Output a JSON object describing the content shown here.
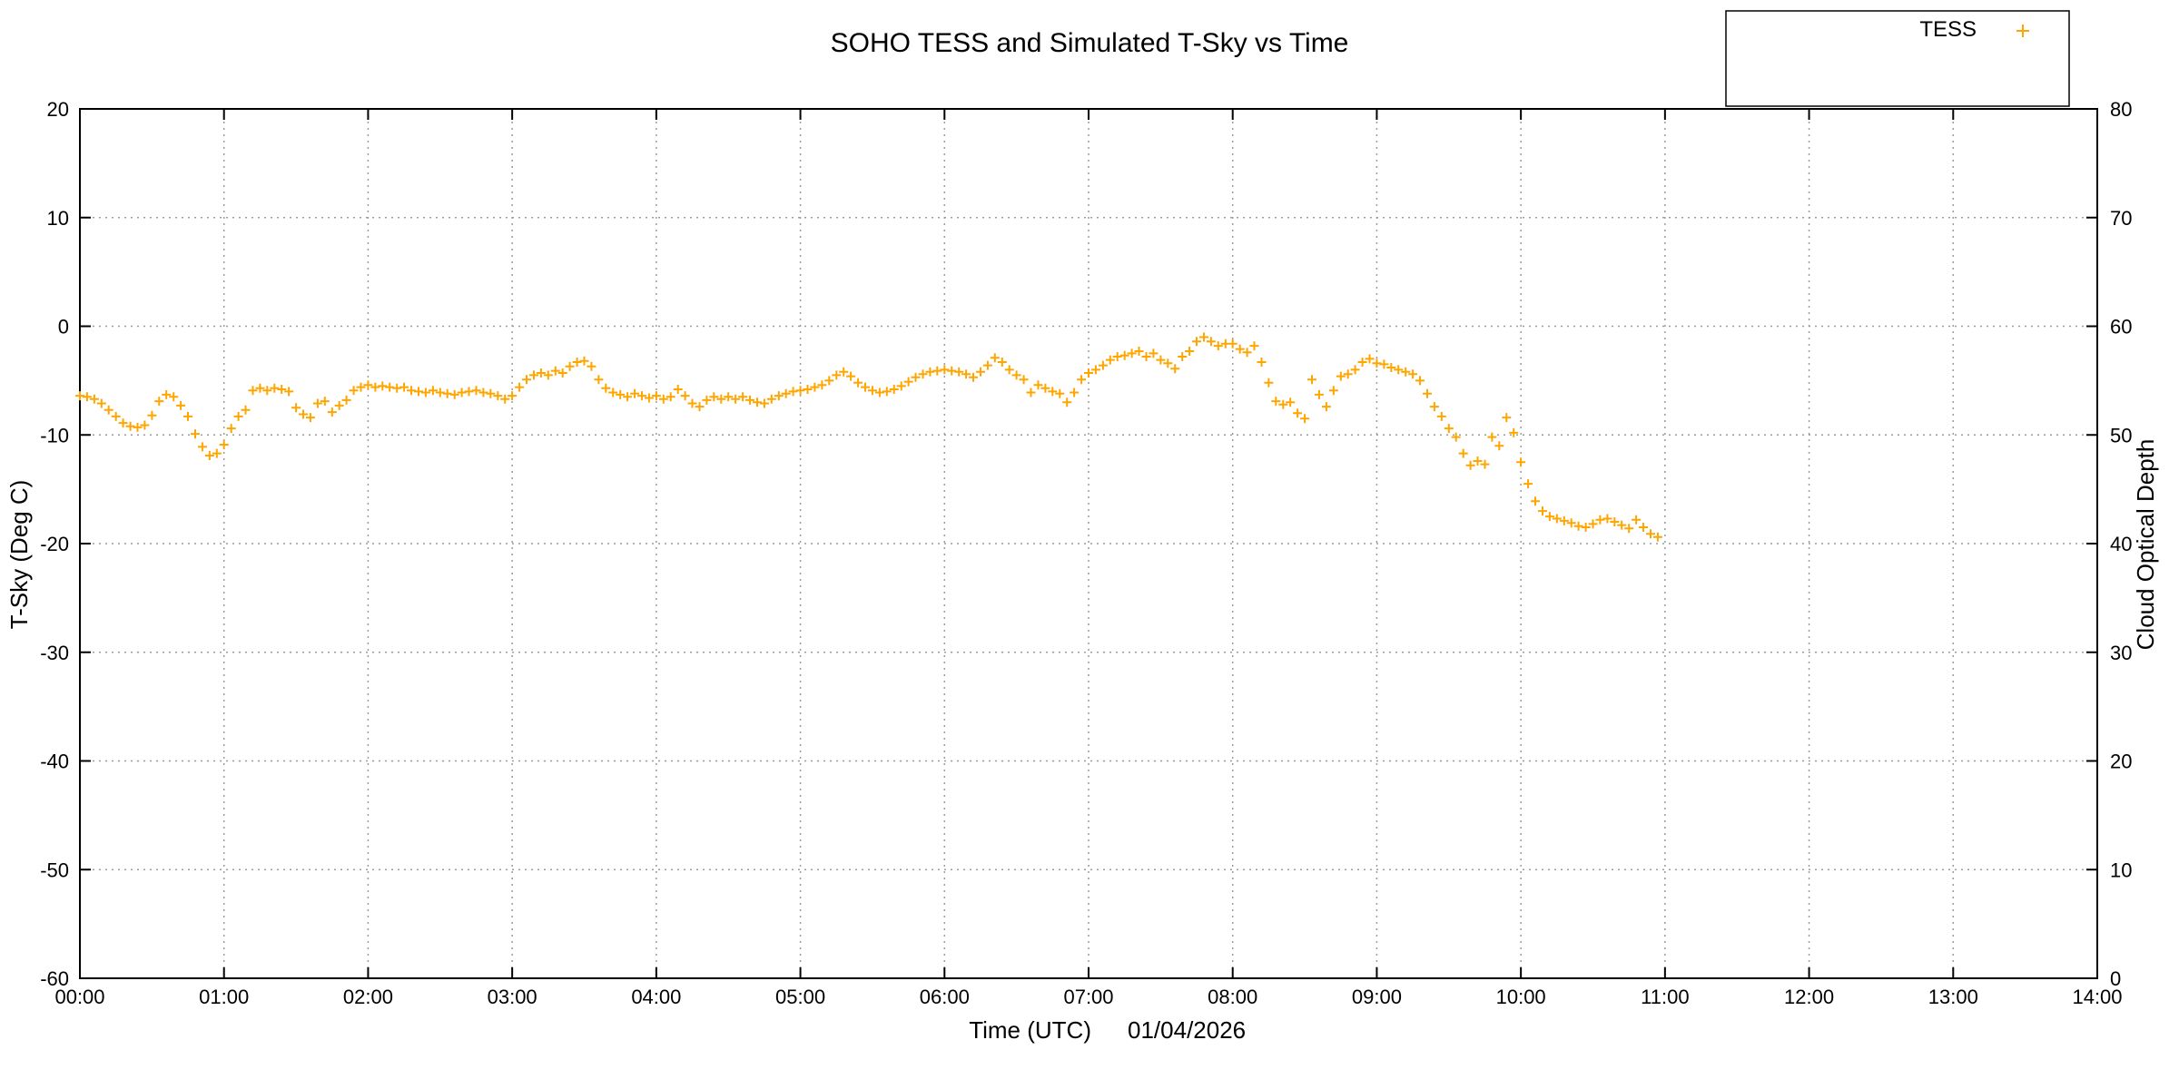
{
  "colors": {
    "marker_orange": "#ffa500",
    "axis_label_green": "#009e73",
    "right_axis_label_blue": "#56b4e9",
    "grid_gray": "#9c9c9c",
    "border_black": "#000000"
  },
  "chart_data": {
    "type": "scatter",
    "title": "SOHO TESS and Simulated T-Sky vs Time",
    "xlabel": "Time (UTC)",
    "xlabel_date": "01/04/2026",
    "ylabel_left": "T-Sky (Deg C)",
    "ylabel_right": "Cloud Optical Depth",
    "xlim_hours": [
      0,
      14
    ],
    "ylim_left": [
      -60,
      20
    ],
    "ylim_right": [
      0,
      80
    ],
    "grid": "dotted-at-every-major-tick",
    "x_tick_labels": [
      "00:00",
      "01:00",
      "02:00",
      "03:00",
      "04:00",
      "05:00",
      "06:00",
      "07:00",
      "08:00",
      "09:00",
      "10:00",
      "11:00",
      "12:00",
      "13:00",
      "14:00"
    ],
    "y_left_tick_labels": [
      "20",
      "10",
      "0",
      "-10",
      "-20",
      "-30",
      "-40",
      "-50",
      "-60"
    ],
    "y_right_tick_labels": [
      "80",
      "70",
      "60",
      "50",
      "40",
      "30",
      "20",
      "10",
      "0"
    ],
    "legend": {
      "position": "top-right-above-plot",
      "entries": [
        {
          "label": "TESS",
          "marker": "plus",
          "color": "#ffa500"
        }
      ]
    },
    "series": [
      {
        "name": "TESS",
        "axis": "left",
        "marker": "plus",
        "color": "#ffa500",
        "points_time_hours_vs_tsky_degC": [
          [
            0,
            -6.4
          ],
          [
            0.05,
            -6.5
          ],
          [
            0.1,
            -6.7
          ],
          [
            0.15,
            -7.1
          ],
          [
            0.2,
            -7.7
          ],
          [
            0.25,
            -8.3
          ],
          [
            0.3,
            -8.9
          ],
          [
            0.35,
            -9.2
          ],
          [
            0.4,
            -9.3
          ],
          [
            0.45,
            -9.1
          ],
          [
            0.5,
            -8.2
          ],
          [
            0.55,
            -6.9
          ],
          [
            0.6,
            -6.3
          ],
          [
            0.65,
            -6.5
          ],
          [
            0.7,
            -7.3
          ],
          [
            0.75,
            -8.3
          ],
          [
            0.8,
            -9.9
          ],
          [
            0.85,
            -11.1
          ],
          [
            0.9,
            -11.9
          ],
          [
            0.95,
            -11.7
          ],
          [
            1,
            -10.9
          ],
          [
            1.05,
            -9.4
          ],
          [
            1.1,
            -8.3
          ],
          [
            1.15,
            -7.7
          ],
          [
            1.2,
            -5.9
          ],
          [
            1.25,
            -5.7
          ],
          [
            1.3,
            -5.9
          ],
          [
            1.35,
            -5.7
          ],
          [
            1.4,
            -5.8
          ],
          [
            1.45,
            -6
          ],
          [
            1.5,
            -7.5
          ],
          [
            1.55,
            -8.1
          ],
          [
            1.6,
            -8.4
          ],
          [
            1.65,
            -7.1
          ],
          [
            1.7,
            -6.9
          ],
          [
            1.75,
            -7.9
          ],
          [
            1.8,
            -7.3
          ],
          [
            1.85,
            -6.8
          ],
          [
            1.9,
            -5.9
          ],
          [
            1.95,
            -5.6
          ],
          [
            2,
            -5.4
          ],
          [
            2.05,
            -5.6
          ],
          [
            2.1,
            -5.5
          ],
          [
            2.15,
            -5.6
          ],
          [
            2.2,
            -5.7
          ],
          [
            2.25,
            -5.6
          ],
          [
            2.3,
            -5.9
          ],
          [
            2.35,
            -6
          ],
          [
            2.4,
            -6.1
          ],
          [
            2.45,
            -5.9
          ],
          [
            2.5,
            -6.1
          ],
          [
            2.55,
            -6.2
          ],
          [
            2.6,
            -6.3
          ],
          [
            2.65,
            -6.1
          ],
          [
            2.7,
            -6
          ],
          [
            2.75,
            -5.9
          ],
          [
            2.8,
            -6.1
          ],
          [
            2.85,
            -6.2
          ],
          [
            2.9,
            -6.4
          ],
          [
            2.95,
            -6.7
          ],
          [
            3,
            -6.4
          ],
          [
            3.05,
            -5.6
          ],
          [
            3.1,
            -4.9
          ],
          [
            3.15,
            -4.5
          ],
          [
            3.2,
            -4.3
          ],
          [
            3.25,
            -4.5
          ],
          [
            3.3,
            -4.1
          ],
          [
            3.35,
            -4.3
          ],
          [
            3.4,
            -3.7
          ],
          [
            3.45,
            -3.3
          ],
          [
            3.5,
            -3.2
          ],
          [
            3.55,
            -3.7
          ],
          [
            3.6,
            -4.9
          ],
          [
            3.65,
            -5.7
          ],
          [
            3.7,
            -6.1
          ],
          [
            3.75,
            -6.3
          ],
          [
            3.8,
            -6.5
          ],
          [
            3.85,
            -6.2
          ],
          [
            3.9,
            -6.4
          ],
          [
            3.95,
            -6.6
          ],
          [
            4,
            -6.4
          ],
          [
            4.05,
            -6.7
          ],
          [
            4.1,
            -6.5
          ],
          [
            4.15,
            -5.8
          ],
          [
            4.2,
            -6.4
          ],
          [
            4.25,
            -7.1
          ],
          [
            4.3,
            -7.4
          ],
          [
            4.35,
            -6.8
          ],
          [
            4.4,
            -6.5
          ],
          [
            4.45,
            -6.7
          ],
          [
            4.5,
            -6.5
          ],
          [
            4.55,
            -6.7
          ],
          [
            4.6,
            -6.5
          ],
          [
            4.65,
            -6.8
          ],
          [
            4.7,
            -7
          ],
          [
            4.75,
            -7.1
          ],
          [
            4.8,
            -6.7
          ],
          [
            4.85,
            -6.4
          ],
          [
            4.9,
            -6.2
          ],
          [
            4.95,
            -6
          ],
          [
            5,
            -5.9
          ],
          [
            5.05,
            -5.8
          ],
          [
            5.1,
            -5.6
          ],
          [
            5.15,
            -5.4
          ],
          [
            5.2,
            -5
          ],
          [
            5.25,
            -4.5
          ],
          [
            5.3,
            -4.2
          ],
          [
            5.35,
            -4.6
          ],
          [
            5.4,
            -5.2
          ],
          [
            5.45,
            -5.6
          ],
          [
            5.5,
            -5.9
          ],
          [
            5.55,
            -6.1
          ],
          [
            5.6,
            -6
          ],
          [
            5.65,
            -5.8
          ],
          [
            5.7,
            -5.5
          ],
          [
            5.75,
            -5.1
          ],
          [
            5.8,
            -4.7
          ],
          [
            5.85,
            -4.4
          ],
          [
            5.9,
            -4.2
          ],
          [
            5.95,
            -4.1
          ],
          [
            6,
            -4
          ],
          [
            6.05,
            -4.1
          ],
          [
            6.1,
            -4.2
          ],
          [
            6.15,
            -4.4
          ],
          [
            6.2,
            -4.7
          ],
          [
            6.25,
            -4.2
          ],
          [
            6.3,
            -3.6
          ],
          [
            6.35,
            -2.9
          ],
          [
            6.4,
            -3.3
          ],
          [
            6.45,
            -4
          ],
          [
            6.5,
            -4.5
          ],
          [
            6.55,
            -4.9
          ],
          [
            6.6,
            -6.1
          ],
          [
            6.65,
            -5.4
          ],
          [
            6.7,
            -5.7
          ],
          [
            6.75,
            -6
          ],
          [
            6.8,
            -6.2
          ],
          [
            6.85,
            -7
          ],
          [
            6.9,
            -6.1
          ],
          [
            6.95,
            -4.9
          ],
          [
            7,
            -4.3
          ],
          [
            7.05,
            -4
          ],
          [
            7.1,
            -3.6
          ],
          [
            7.15,
            -3.1
          ],
          [
            7.2,
            -2.8
          ],
          [
            7.25,
            -2.7
          ],
          [
            7.3,
            -2.5
          ],
          [
            7.35,
            -2.3
          ],
          [
            7.4,
            -2.8
          ],
          [
            7.45,
            -2.5
          ],
          [
            7.5,
            -3.1
          ],
          [
            7.55,
            -3.4
          ],
          [
            7.6,
            -3.9
          ],
          [
            7.65,
            -2.8
          ],
          [
            7.7,
            -2.3
          ],
          [
            7.75,
            -1.4
          ],
          [
            7.8,
            -1
          ],
          [
            7.85,
            -1.4
          ],
          [
            7.9,
            -1.8
          ],
          [
            7.95,
            -1.6
          ],
          [
            8,
            -1.6
          ],
          [
            8.05,
            -2.1
          ],
          [
            8.1,
            -2.4
          ],
          [
            8.15,
            -1.8
          ],
          [
            8.2,
            -3.3
          ],
          [
            8.25,
            -5.2
          ],
          [
            8.3,
            -6.9
          ],
          [
            8.35,
            -7.2
          ],
          [
            8.4,
            -7
          ],
          [
            8.45,
            -8
          ],
          [
            8.5,
            -8.5
          ],
          [
            8.55,
            -4.9
          ],
          [
            8.6,
            -6.3
          ],
          [
            8.65,
            -7.4
          ],
          [
            8.7,
            -5.9
          ],
          [
            8.75,
            -4.6
          ],
          [
            8.8,
            -4.4
          ],
          [
            8.85,
            -4
          ],
          [
            8.9,
            -3.3
          ],
          [
            8.95,
            -3
          ],
          [
            9,
            -3.4
          ],
          [
            9.05,
            -3.5
          ],
          [
            9.1,
            -3.8
          ],
          [
            9.15,
            -4
          ],
          [
            9.2,
            -4.2
          ],
          [
            9.25,
            -4.4
          ],
          [
            9.3,
            -5
          ],
          [
            9.35,
            -6.2
          ],
          [
            9.4,
            -7.4
          ],
          [
            9.45,
            -8.3
          ],
          [
            9.5,
            -9.4
          ],
          [
            9.55,
            -10.2
          ],
          [
            9.6,
            -11.7
          ],
          [
            9.65,
            -12.8
          ],
          [
            9.7,
            -12.4
          ],
          [
            9.75,
            -12.7
          ],
          [
            9.8,
            -10.2
          ],
          [
            9.85,
            -11
          ],
          [
            9.9,
            -8.4
          ],
          [
            9.95,
            -9.8
          ],
          [
            10,
            -12.5
          ],
          [
            10.05,
            -14.5
          ],
          [
            10.1,
            -16.1
          ],
          [
            10.15,
            -17
          ],
          [
            10.2,
            -17.5
          ],
          [
            10.25,
            -17.7
          ],
          [
            10.3,
            -17.9
          ],
          [
            10.35,
            -18.1
          ],
          [
            10.4,
            -18.4
          ],
          [
            10.45,
            -18.5
          ],
          [
            10.5,
            -18.2
          ],
          [
            10.55,
            -17.8
          ],
          [
            10.6,
            -17.7
          ],
          [
            10.65,
            -18
          ],
          [
            10.7,
            -18.3
          ],
          [
            10.75,
            -18.6
          ],
          [
            10.8,
            -17.8
          ],
          [
            10.85,
            -18.5
          ],
          [
            10.9,
            -19.1
          ],
          [
            10.95,
            -19.4
          ]
        ]
      }
    ]
  }
}
